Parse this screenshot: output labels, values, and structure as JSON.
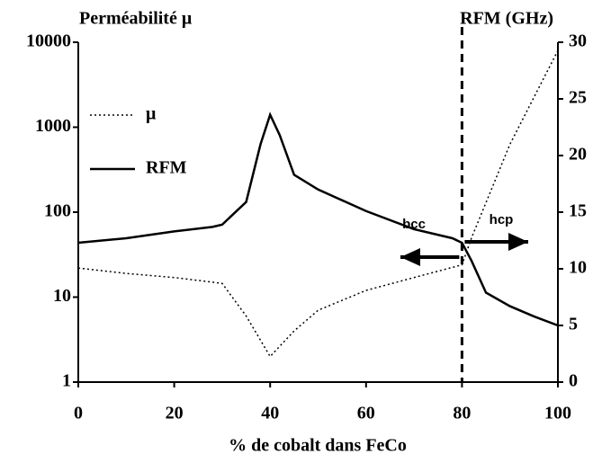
{
  "chart_data": {
    "type": "line",
    "y_axis_label": "Perméabilité μ",
    "y2_axis_label": "RFM (GHz)",
    "x_axis_label": "% de cobalt dans FeCo",
    "xlim": [
      0,
      100
    ],
    "xticks": [
      0,
      20,
      40,
      60,
      80,
      100
    ],
    "ylim": [
      1,
      10000
    ],
    "yticks": [
      1,
      10,
      100,
      1000,
      10000
    ],
    "log_y": true,
    "y2lim": [
      0,
      30
    ],
    "y2ticks": [
      0,
      5,
      10,
      15,
      20,
      25,
      30
    ],
    "vline_x": 80,
    "annotations": [
      {
        "text": "bcc"
      },
      {
        "text": "hcp"
      }
    ],
    "series": [
      {
        "name": "μ",
        "color": "#000000",
        "style": "dotted",
        "x": [
          0,
          10,
          20,
          28,
          30,
          35,
          40,
          45,
          50,
          60,
          70,
          80,
          82,
          90,
          100
        ],
        "values": [
          22,
          19,
          17,
          15,
          14.5,
          6,
          2,
          4,
          7,
          12,
          17,
          24,
          50,
          630,
          8000
        ]
      },
      {
        "name": "RFM",
        "color": "#000000",
        "style": "solid",
        "axis": "y2",
        "x": [
          0,
          10,
          20,
          28,
          30,
          35,
          38,
          40,
          42,
          45,
          50,
          60,
          70,
          78,
          80,
          82,
          85,
          90,
          95,
          100
        ],
        "values": [
          12.3,
          12.7,
          13.3,
          13.7,
          13.9,
          15.9,
          21,
          23.6,
          21.8,
          18.3,
          17,
          15.1,
          13.5,
          12.7,
          12.3,
          10.7,
          7.9,
          6.7,
          5.8,
          5
        ]
      }
    ]
  }
}
